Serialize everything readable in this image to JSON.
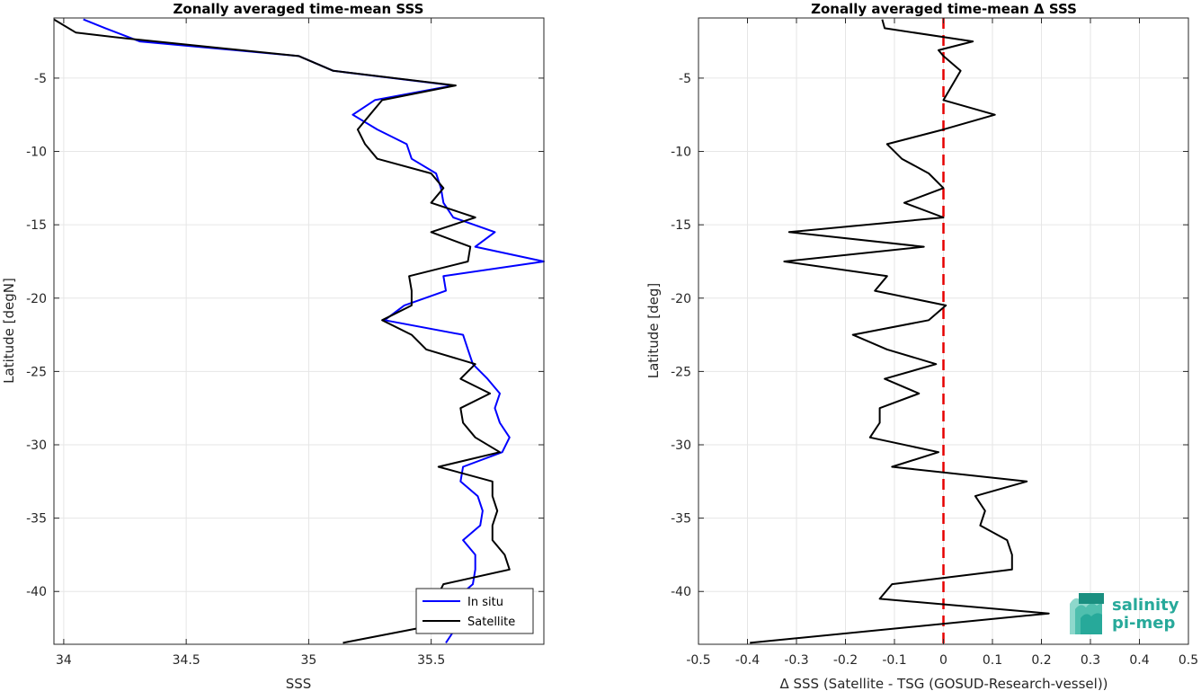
{
  "chart_data": [
    {
      "type": "line",
      "title": "Zonally averaged time-mean SSS",
      "xlabel": "SSS",
      "ylabel": "Latitude [degN]",
      "xlim": [
        33.96,
        35.96
      ],
      "ylim": [
        -43.6,
        -0.9
      ],
      "xticks": [
        34,
        34.5,
        35,
        35.5
      ],
      "yticks": [
        -5,
        -10,
        -15,
        -20,
        -25,
        -30,
        -35,
        -40
      ],
      "grid": true,
      "legend": "bottom-right",
      "series": [
        {
          "name": "In situ",
          "color": "#0000ff",
          "points": [
            [
              34.08,
              -1.0
            ],
            [
              34.17,
              -1.6
            ],
            [
              34.31,
              -2.5
            ],
            [
              34.96,
              -3.5
            ],
            [
              35.1,
              -4.5
            ],
            [
              35.59,
              -5.5
            ],
            [
              35.27,
              -6.5
            ],
            [
              35.18,
              -7.5
            ],
            [
              35.28,
              -8.5
            ],
            [
              35.4,
              -9.5
            ],
            [
              35.42,
              -10.5
            ],
            [
              35.52,
              -11.5
            ],
            [
              35.54,
              -12.5
            ],
            [
              35.55,
              -13.5
            ],
            [
              35.59,
              -14.5
            ],
            [
              35.76,
              -15.5
            ],
            [
              35.68,
              -16.5
            ],
            [
              35.96,
              -17.5
            ],
            [
              35.55,
              -18.5
            ],
            [
              35.56,
              -19.5
            ],
            [
              35.39,
              -20.5
            ],
            [
              35.31,
              -21.5
            ],
            [
              35.63,
              -22.5
            ],
            [
              35.65,
              -23.5
            ],
            [
              35.67,
              -24.5
            ],
            [
              35.73,
              -25.5
            ],
            [
              35.78,
              -26.5
            ],
            [
              35.76,
              -27.5
            ],
            [
              35.78,
              -28.5
            ],
            [
              35.82,
              -29.5
            ],
            [
              35.79,
              -30.5
            ],
            [
              35.63,
              -31.5
            ],
            [
              35.62,
              -32.5
            ],
            [
              35.69,
              -33.5
            ],
            [
              35.71,
              -34.5
            ],
            [
              35.7,
              -35.5
            ],
            [
              35.63,
              -36.5
            ],
            [
              35.68,
              -37.5
            ],
            [
              35.68,
              -38.5
            ],
            [
              35.67,
              -39.5
            ],
            [
              35.6,
              -40.5
            ],
            [
              35.62,
              -41.5
            ],
            [
              35.6,
              -42.5
            ],
            [
              35.56,
              -43.5
            ]
          ]
        },
        {
          "name": "Satellite",
          "color": "#000000",
          "points": [
            [
              33.96,
              -1.0
            ],
            [
              34.05,
              -1.9
            ],
            [
              34.26,
              -2.3
            ],
            [
              34.96,
              -3.5
            ],
            [
              35.1,
              -4.5
            ],
            [
              35.6,
              -5.5
            ],
            [
              35.3,
              -6.5
            ],
            [
              35.25,
              -7.5
            ],
            [
              35.2,
              -8.5
            ],
            [
              35.23,
              -9.5
            ],
            [
              35.28,
              -10.5
            ],
            [
              35.5,
              -11.5
            ],
            [
              35.55,
              -12.5
            ],
            [
              35.5,
              -13.5
            ],
            [
              35.68,
              -14.5
            ],
            [
              35.5,
              -15.5
            ],
            [
              35.66,
              -16.5
            ],
            [
              35.65,
              -17.5
            ],
            [
              35.41,
              -18.5
            ],
            [
              35.42,
              -19.5
            ],
            [
              35.42,
              -20.5
            ],
            [
              35.3,
              -21.5
            ],
            [
              35.42,
              -22.5
            ],
            [
              35.48,
              -23.5
            ],
            [
              35.68,
              -24.5
            ],
            [
              35.62,
              -25.5
            ],
            [
              35.74,
              -26.5
            ],
            [
              35.62,
              -27.5
            ],
            [
              35.63,
              -28.5
            ],
            [
              35.68,
              -29.5
            ],
            [
              35.78,
              -30.5
            ],
            [
              35.53,
              -31.5
            ],
            [
              35.75,
              -32.5
            ],
            [
              35.75,
              -33.5
            ],
            [
              35.77,
              -34.5
            ],
            [
              35.75,
              -35.5
            ],
            [
              35.75,
              -36.5
            ],
            [
              35.8,
              -37.5
            ],
            [
              35.82,
              -38.5
            ],
            [
              35.55,
              -39.5
            ],
            [
              35.52,
              -40.5
            ],
            [
              35.5,
              -41.5
            ],
            [
              35.45,
              -42.5
            ],
            [
              35.14,
              -43.5
            ]
          ]
        }
      ]
    },
    {
      "type": "line",
      "title": "Zonally averaged time-mean Δ SSS",
      "xlabel": "Δ SSS (Satellite - TSG (GOSUD-Research-vessel))",
      "ylabel": "Latitude [deg]",
      "xlim": [
        -0.5,
        0.5
      ],
      "ylim": [
        -43.6,
        -0.9
      ],
      "xticks": [
        -0.5,
        -0.4,
        -0.3,
        -0.2,
        -0.1,
        0,
        0.1,
        0.2,
        0.3,
        0.4,
        0.5
      ],
      "xticklabels": [
        "-0.5",
        "-0.4",
        "-0.3",
        "-0.2",
        "-0.1",
        "0",
        "0.1",
        "0.2",
        "0.3",
        "0.4",
        "0.5"
      ],
      "yticks": [
        -5,
        -10,
        -15,
        -20,
        -25,
        -30,
        -35,
        -40
      ],
      "grid": true,
      "zero_line": {
        "x": 0,
        "color": "#e60000",
        "style": "dashed"
      },
      "series": [
        {
          "color": "#000000",
          "points": [
            [
              -0.125,
              -1.0
            ],
            [
              -0.12,
              -1.6
            ],
            [
              0.06,
              -2.5
            ],
            [
              -0.01,
              -3.1
            ],
            [
              0.0,
              -3.5
            ],
            [
              0.035,
              -4.5
            ],
            [
              0.0,
              -6.5
            ],
            [
              0.105,
              -7.5
            ],
            [
              0.0,
              -8.5
            ],
            [
              -0.115,
              -9.5
            ],
            [
              -0.085,
              -10.5
            ],
            [
              -0.03,
              -11.5
            ],
            [
              0.0,
              -12.5
            ],
            [
              -0.08,
              -13.5
            ],
            [
              0.0,
              -14.5
            ],
            [
              -0.315,
              -15.5
            ],
            [
              -0.04,
              -16.5
            ],
            [
              -0.325,
              -17.5
            ],
            [
              -0.115,
              -18.5
            ],
            [
              -0.14,
              -19.5
            ],
            [
              0.005,
              -20.5
            ],
            [
              -0.03,
              -21.5
            ],
            [
              -0.185,
              -22.5
            ],
            [
              -0.115,
              -23.5
            ],
            [
              -0.015,
              -24.5
            ],
            [
              -0.12,
              -25.5
            ],
            [
              -0.05,
              -26.5
            ],
            [
              -0.13,
              -27.5
            ],
            [
              -0.13,
              -28.5
            ],
            [
              -0.15,
              -29.5
            ],
            [
              -0.01,
              -30.5
            ],
            [
              -0.105,
              -31.5
            ],
            [
              0.17,
              -32.5
            ],
            [
              0.065,
              -33.5
            ],
            [
              0.085,
              -34.5
            ],
            [
              0.075,
              -35.5
            ],
            [
              0.13,
              -36.5
            ],
            [
              0.14,
              -37.5
            ],
            [
              0.14,
              -38.5
            ],
            [
              -0.105,
              -39.5
            ],
            [
              -0.13,
              -40.5
            ],
            [
              0.215,
              -41.5
            ],
            [
              -0.395,
              -43.5
            ]
          ]
        }
      ]
    }
  ],
  "logo": {
    "line1": "salinity",
    "line2": "pi-mep",
    "color": "#27a99a"
  }
}
